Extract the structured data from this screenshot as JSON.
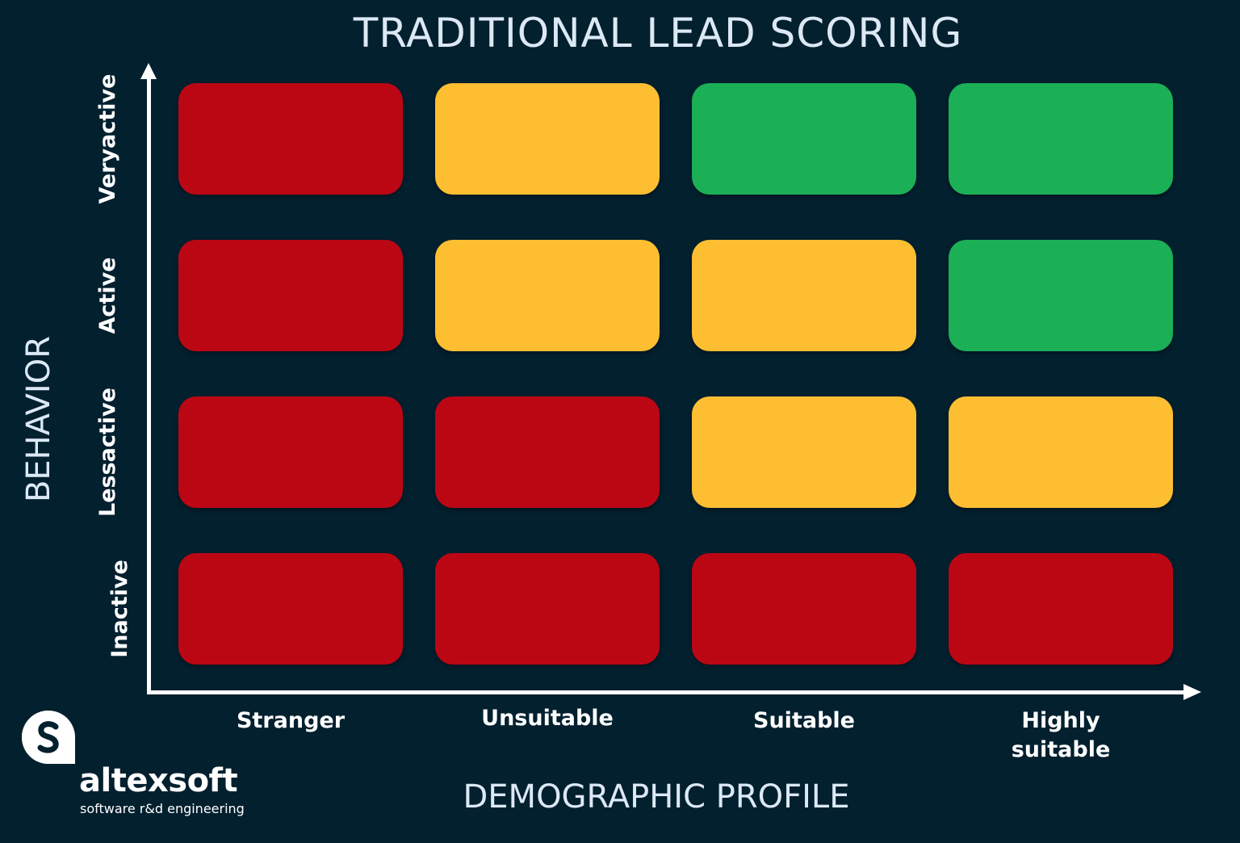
{
  "title": "TRADITIONAL LEAD SCORING",
  "axes": {
    "y_label": "BEHAVIOR",
    "x_label": "DEMOGRAPHIC PROFILE"
  },
  "rows": [
    {
      "label_lines": [
        "Very",
        "active"
      ]
    },
    {
      "label_lines": [
        "Active"
      ]
    },
    {
      "label_lines": [
        "Less",
        "active"
      ]
    },
    {
      "label_lines": [
        "Inactive"
      ]
    }
  ],
  "columns": [
    {
      "label_lines": [
        "Stranger"
      ]
    },
    {
      "label_lines": [
        "Unsuitable"
      ]
    },
    {
      "label_lines": [
        "Suitable"
      ]
    },
    {
      "label_lines": [
        "Highly",
        "suitable"
      ]
    }
  ],
  "colors": {
    "red": "#bb0714",
    "yellow": "#fdbe32",
    "green": "#1baf56",
    "background": "#03202f"
  },
  "matrix": [
    [
      "red",
      "yellow",
      "green",
      "green"
    ],
    [
      "red",
      "yellow",
      "yellow",
      "green"
    ],
    [
      "red",
      "red",
      "yellow",
      "yellow"
    ],
    [
      "red",
      "red",
      "red",
      "red"
    ]
  ],
  "brand": {
    "name": "altexsoft",
    "tagline": "software r&d engineering",
    "logo_icon": "altexsoft-logo-icon"
  }
}
